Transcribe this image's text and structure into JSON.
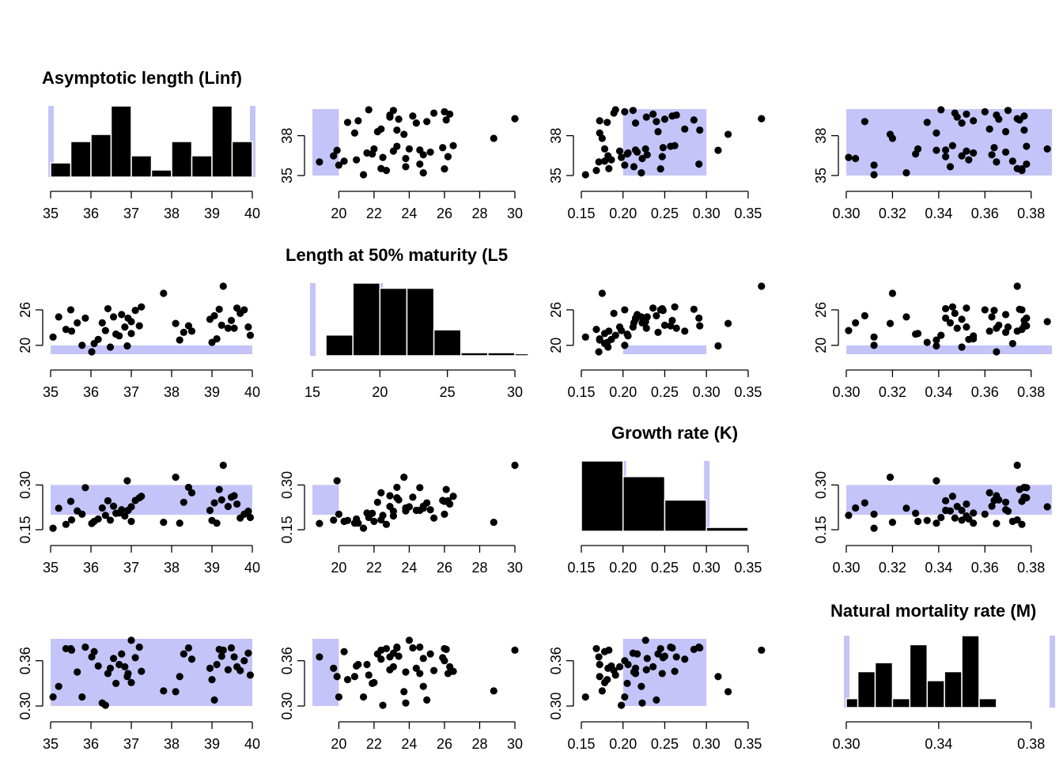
{
  "colors": {
    "shade": "#c4c4f8",
    "ink": "#000000",
    "bar_edge": "#ffffff"
  },
  "chart_data": {
    "type": "pairs",
    "titles": [
      "Asymptotic length (Linf)",
      "Length at 50% maturity (L5",
      "Growth rate (K)",
      "Natural mortality rate (M)"
    ],
    "variables": [
      {
        "name": "Linf",
        "axis": {
          "min": 35,
          "max": 40,
          "ticks": [
            35,
            36,
            37,
            38,
            39,
            40
          ],
          "labels": [
            "35",
            "36",
            "37",
            "38",
            "39",
            "40"
          ]
        },
        "hist_axis": {
          "min": 35,
          "max": 40,
          "ticks": [
            35,
            36,
            37,
            38,
            39,
            40
          ],
          "labels": [
            "35",
            "36",
            "37",
            "38",
            "39",
            "40"
          ]
        },
        "y_ticks": [
          35,
          38
        ],
        "y_labels": [
          "35",
          "38"
        ],
        "shade": [
          35,
          40
        ]
      },
      {
        "name": "L5",
        "axis": {
          "min": 18.5,
          "max": 30,
          "ticks": [
            20,
            22,
            24,
            26,
            28,
            30
          ],
          "labels": [
            "20",
            "22",
            "24",
            "26",
            "28",
            "30"
          ]
        },
        "hist_axis": {
          "min": 15,
          "max": 30,
          "ticks": [
            15,
            20,
            25,
            30
          ],
          "labels": [
            "15",
            "20",
            "25",
            "30"
          ]
        },
        "y_ticks": [
          20,
          26
        ],
        "y_labels": [
          "20",
          "26"
        ],
        "shade": [
          15,
          20
        ]
      },
      {
        "name": "K",
        "axis": {
          "min": 0.15,
          "max": 0.37,
          "ticks": [
            0.15,
            0.2,
            0.25,
            0.3,
            0.35
          ],
          "labels": [
            "0.15",
            "0.20",
            "0.25",
            "0.30",
            "0.35"
          ]
        },
        "hist_axis": {
          "min": 0.15,
          "max": 0.37,
          "ticks": [
            0.15,
            0.2,
            0.25,
            0.3,
            0.35
          ],
          "labels": [
            "0.15",
            "0.20",
            "0.25",
            "0.30",
            "0.35"
          ]
        },
        "y_ticks": [
          0.15,
          0.3
        ],
        "y_labels": [
          "0.15",
          "0.30"
        ],
        "shade": [
          0.2,
          0.3
        ]
      },
      {
        "name": "M",
        "axis": {
          "min": 0.3,
          "max": 0.389,
          "ticks": [
            0.3,
            0.32,
            0.34,
            0.36,
            0.38
          ],
          "labels": [
            "0.30",
            "0.32",
            "0.34",
            "0.36",
            "0.38"
          ]
        },
        "hist_axis": {
          "min": 0.3,
          "max": 0.389,
          "ticks": [
            0.3,
            0.34,
            0.38
          ],
          "labels": [
            "0.30",
            "0.34",
            "0.38"
          ]
        },
        "y_ticks": [
          0.3,
          0.36
        ],
        "y_labels": [
          "0.30",
          "0.36"
        ],
        "shade": [
          0.3,
          0.39
        ]
      }
    ],
    "histograms": [
      {
        "breaks": [
          35,
          35.5,
          36,
          36.5,
          37,
          37.5,
          38,
          38.5,
          39,
          39.5,
          40
        ],
        "counts": [
          2,
          5,
          6,
          10,
          3,
          1,
          5,
          3,
          10,
          5
        ]
      },
      {
        "breaks": [
          16,
          18,
          20,
          22,
          24,
          26,
          28,
          30,
          31
        ],
        "counts": [
          4,
          14,
          13,
          13,
          5,
          0.6,
          0.6,
          0.4
        ]
      },
      {
        "breaks": [
          0.15,
          0.2,
          0.25,
          0.3,
          0.35,
          0.375
        ],
        "counts": [
          18,
          14,
          8,
          1,
          0.3
        ]
      },
      {
        "breaks": [
          0.3,
          0.305,
          0.3125,
          0.32,
          0.3275,
          0.335,
          0.3425,
          0.35,
          0.3575,
          0.365,
          0.3725,
          0.38,
          0.385
        ],
        "counts": [
          1,
          4,
          5,
          1,
          7,
          3,
          4,
          8,
          1,
          0,
          0,
          0
        ]
      }
    ],
    "samples": [
      {
        "Linf": 35.06,
        "L5": 21.4,
        "K": 0.155,
        "M": 0.312
      },
      {
        "Linf": 35.38,
        "L5": 22.7,
        "K": 0.168,
        "M": 0.376
      },
      {
        "Linf": 35.52,
        "L5": 22.4,
        "K": 0.183,
        "M": 0.374
      },
      {
        "Linf": 35.66,
        "L5": 23.8,
        "K": 0.213,
        "M": 0.345
      },
      {
        "Linf": 35.78,
        "L5": 20.0,
        "K": 0.202,
        "M": 0.312
      },
      {
        "Linf": 35.86,
        "L5": 24.6,
        "K": 0.291,
        "M": 0.378
      },
      {
        "Linf": 36.02,
        "L5": 18.9,
        "K": 0.171,
        "M": 0.365
      },
      {
        "Linf": 36.08,
        "L5": 20.3,
        "K": 0.178,
        "M": 0.372
      },
      {
        "Linf": 36.18,
        "L5": 21.0,
        "K": 0.186,
        "M": 0.353
      },
      {
        "Linf": 36.28,
        "L5": 23.8,
        "K": 0.223,
        "M": 0.304
      },
      {
        "Linf": 36.36,
        "L5": 22.5,
        "K": 0.198,
        "M": 0.301
      },
      {
        "Linf": 36.42,
        "L5": 26.2,
        "K": 0.247,
        "M": 0.343
      },
      {
        "Linf": 36.48,
        "L5": 19.7,
        "K": 0.182,
        "M": 0.35
      },
      {
        "Linf": 36.56,
        "L5": 24.8,
        "K": 0.229,
        "M": 0.363
      },
      {
        "Linf": 36.62,
        "L5": 21.9,
        "K": 0.205,
        "M": 0.33
      },
      {
        "Linf": 36.7,
        "L5": 21.6,
        "K": 0.206,
        "M": 0.355
      },
      {
        "Linf": 36.76,
        "L5": 25.2,
        "K": 0.217,
        "M": 0.369
      },
      {
        "Linf": 36.84,
        "L5": 23.1,
        "K": 0.196,
        "M": 0.352
      },
      {
        "Linf": 36.92,
        "L5": 24.6,
        "K": 0.215,
        "M": 0.343
      },
      {
        "Linf": 37.0,
        "L5": 22.0,
        "K": 0.178,
        "M": 0.331
      },
      {
        "Linf": 37.1,
        "L5": 25.9,
        "K": 0.248,
        "M": 0.364
      },
      {
        "Linf": 37.2,
        "L5": 23.3,
        "K": 0.257,
        "M": 0.378
      },
      {
        "Linf": 37.25,
        "L5": 26.5,
        "K": 0.262,
        "M": 0.346
      },
      {
        "Linf": 37.8,
        "L5": 28.8,
        "K": 0.175,
        "M": 0.32
      },
      {
        "Linf": 38.2,
        "L5": 20.9,
        "K": 0.172,
        "M": 0.339
      },
      {
        "Linf": 38.3,
        "L5": 22.2,
        "K": 0.242,
        "M": 0.369
      },
      {
        "Linf": 38.42,
        "L5": 23.3,
        "K": 0.292,
        "M": 0.377
      },
      {
        "Linf": 38.5,
        "L5": 22.4,
        "K": 0.274,
        "M": 0.362
      },
      {
        "Linf": 38.95,
        "L5": 24.4,
        "K": 0.215,
        "M": 0.35
      },
      {
        "Linf": 39.0,
        "L5": 20.5,
        "K": 0.181,
        "M": 0.335
      },
      {
        "Linf": 39.06,
        "L5": 25.0,
        "K": 0.24,
        "M": 0.308
      },
      {
        "Linf": 39.12,
        "L5": 21.1,
        "K": 0.172,
        "M": 0.355
      },
      {
        "Linf": 39.18,
        "L5": 26.1,
        "K": 0.285,
        "M": 0.375
      },
      {
        "Linf": 39.24,
        "L5": 23.4,
        "K": 0.25,
        "M": 0.366
      },
      {
        "Linf": 39.28,
        "L5": 30.0,
        "K": 0.366,
        "M": 0.374
      },
      {
        "Linf": 39.4,
        "L5": 22.9,
        "K": 0.228,
        "M": 0.348
      },
      {
        "Linf": 39.48,
        "L5": 24.2,
        "K": 0.259,
        "M": 0.377
      },
      {
        "Linf": 39.55,
        "L5": 22.9,
        "K": 0.264,
        "M": 0.365
      },
      {
        "Linf": 39.62,
        "L5": 26.3,
        "K": 0.236,
        "M": 0.352
      },
      {
        "Linf": 39.7,
        "L5": 25.4,
        "K": 0.189,
        "M": 0.347
      },
      {
        "Linf": 39.8,
        "L5": 26.0,
        "K": 0.202,
        "M": 0.36
      },
      {
        "Linf": 39.9,
        "L5": 23.1,
        "K": 0.212,
        "M": 0.37
      },
      {
        "Linf": 39.95,
        "L5": 21.7,
        "K": 0.191,
        "M": 0.341
      },
      {
        "Linf": 38.1,
        "L5": 23.7,
        "K": 0.326,
        "M": 0.319
      },
      {
        "Linf": 36.9,
        "L5": 19.9,
        "K": 0.314,
        "M": 0.339
      },
      {
        "Linf": 37.0,
        "L5": 24.0,
        "K": 0.227,
        "M": 0.387
      },
      {
        "Linf": 35.2,
        "L5": 24.8,
        "K": 0.222,
        "M": 0.326
      },
      {
        "Linf": 35.5,
        "L5": 26.0,
        "K": 0.245,
        "M": 0.376
      }
    ]
  }
}
